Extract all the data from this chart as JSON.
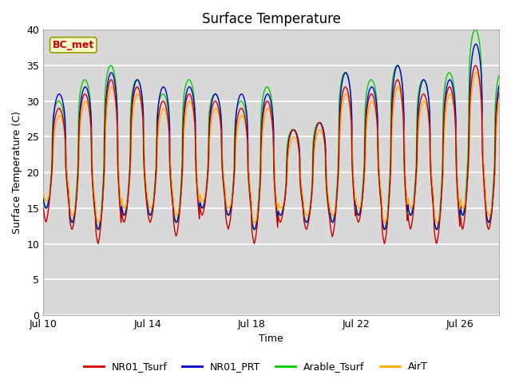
{
  "title": "Surface Temperature",
  "xlabel": "Time",
  "ylabel": "Surface Temperature (C)",
  "annotation": "BC_met",
  "ylim": [
    0,
    40
  ],
  "xlim_start": 10,
  "xlim_end": 27.5,
  "x_ticks": [
    10,
    14,
    18,
    22,
    26
  ],
  "x_tick_labels": [
    "Jul 10",
    "Jul 14",
    "Jul 18",
    "Jul 22",
    "Jul 26"
  ],
  "y_ticks": [
    0,
    5,
    10,
    15,
    20,
    25,
    30,
    35,
    40
  ],
  "legend_entries": [
    "NR01_Tsurf",
    "NR01_PRT",
    "Arable_Tsurf",
    "AirT"
  ],
  "line_colors": [
    "#cc0000",
    "#0000cc",
    "#00cc00",
    "#ffaa00"
  ],
  "figure_bg": "#ffffff",
  "plot_bg": "#d8d8d8",
  "grid_color": "#ffffff",
  "annotation_bg": "#ffffcc",
  "annotation_border": "#999900",
  "annotation_text_color": "#cc0000",
  "title_fontsize": 12,
  "label_fontsize": 9,
  "tick_fontsize": 9,
  "legend_fontsize": 9,
  "day_peaks": [
    29,
    31,
    33,
    32,
    30,
    31,
    30,
    29,
    30,
    26,
    27,
    32,
    31,
    33,
    31,
    32,
    35,
    32
  ],
  "day_troughs": [
    15,
    13,
    12,
    14,
    14,
    13,
    15,
    14,
    12,
    14,
    13,
    13,
    14,
    12,
    14,
    12,
    14,
    13
  ],
  "peak_extra_blue": [
    2,
    1,
    1,
    1,
    2,
    1,
    1,
    2,
    1,
    0,
    0,
    2,
    1,
    2,
    2,
    1,
    3,
    1
  ],
  "peak_extra_green": [
    1,
    2,
    2,
    1,
    1,
    2,
    1,
    1,
    2,
    0,
    0,
    2,
    2,
    2,
    2,
    2,
    5,
    2
  ],
  "trough_extra_red": [
    -2,
    -1,
    -2,
    -1,
    -1,
    -2,
    -1,
    -2,
    -2,
    -1,
    -1,
    -2,
    -1,
    -2,
    -2,
    -2,
    -2,
    -1
  ]
}
